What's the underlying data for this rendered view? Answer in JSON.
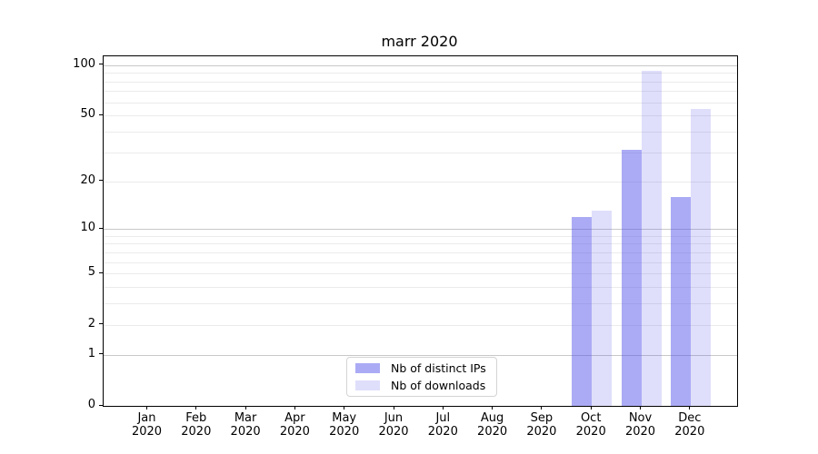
{
  "chart_data": {
    "type": "bar",
    "title": "marr 2020",
    "scale": "log10(1+y)",
    "grid": true,
    "legend_position": "lower center",
    "categories": [
      "Jan 2020",
      "Feb 2020",
      "Mar 2020",
      "Apr 2020",
      "May 2020",
      "Jun 2020",
      "Jul 2020",
      "Aug 2020",
      "Sep 2020",
      "Oct 2020",
      "Nov 2020",
      "Dec 2020"
    ],
    "series": [
      {
        "name": "Nb of distinct IPs",
        "color": "#5050EB7A",
        "values": [
          null,
          null,
          null,
          null,
          null,
          null,
          null,
          null,
          null,
          12,
          31,
          16
        ]
      },
      {
        "name": "Nb of downloads",
        "color": "#5050EB2E",
        "values": [
          null,
          null,
          null,
          null,
          null,
          null,
          null,
          null,
          null,
          13,
          93,
          55
        ]
      }
    ],
    "y_tick_labels": [
      0,
      1,
      2,
      5,
      10,
      20,
      50,
      100
    ],
    "y_major_gridlines": [
      1,
      10,
      100
    ],
    "y_minor_gridlines": [
      2,
      3,
      4,
      5,
      6,
      7,
      8,
      9,
      20,
      30,
      40,
      50,
      60,
      70,
      80,
      90
    ],
    "ylim": [
      0,
      113
    ],
    "axis_color": "#000000",
    "major_grid_color": "#c8c8c8",
    "minor_grid_color": "#ebebeb"
  }
}
